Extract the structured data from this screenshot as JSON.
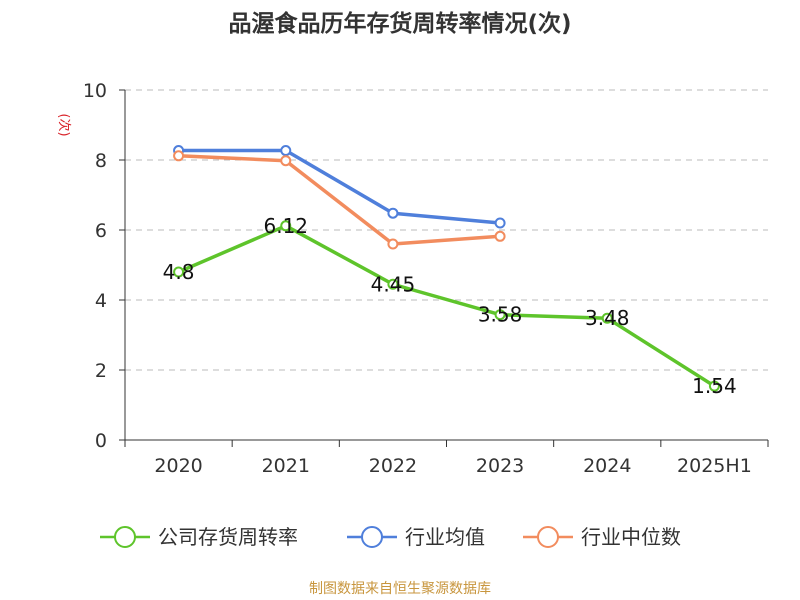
{
  "chart_data": {
    "type": "line",
    "title": "品渥食品历年存货周转率情况(次)",
    "ylabel": "(次)",
    "xlabel": "",
    "categories": [
      "2020",
      "2021",
      "2022",
      "2023",
      "2024",
      "2025H1"
    ],
    "ylim": [
      0,
      10
    ],
    "yticks": [
      0,
      2,
      4,
      6,
      8,
      10
    ],
    "grid": true,
    "legend_position": "bottom",
    "series": [
      {
        "name": "公司存货周转率",
        "color": "#5ec42b",
        "values": [
          4.8,
          6.12,
          4.45,
          3.58,
          3.48,
          1.54
        ],
        "data_labels": [
          "4.8",
          "6.12",
          "4.45",
          "3.58",
          "3.48",
          "1.54"
        ]
      },
      {
        "name": "行业均值",
        "color": "#4f7fdb",
        "values": [
          8.27,
          8.27,
          6.48,
          6.2,
          null,
          null
        ]
      },
      {
        "name": "行业中位数",
        "color": "#f28c5e",
        "values": [
          8.12,
          7.98,
          5.6,
          5.82,
          null,
          null
        ]
      }
    ]
  },
  "ylabel_color": "#d9232a",
  "footer": {
    "source": "制图数据来自恒生聚源数据库"
  }
}
